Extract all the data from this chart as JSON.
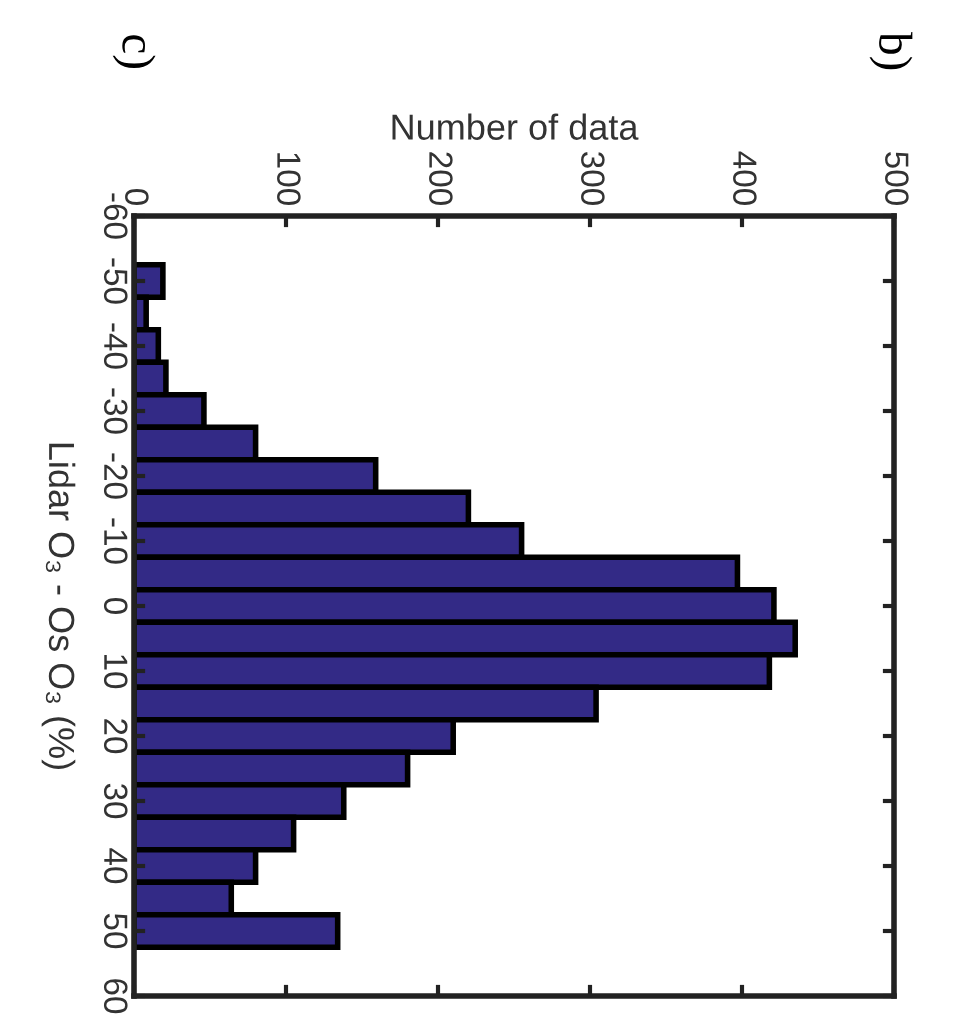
{
  "chart_data": {
    "type": "histogram",
    "orientation": "horizontal",
    "xlabel": "Number of data",
    "ylabel": "Lidar O₃ - Os O₃ (%)",
    "annotations": [
      "c)",
      "b)"
    ],
    "bins": [
      -52.5,
      -47.5,
      -42.5,
      -37.5,
      -32.5,
      -27.5,
      -22.5,
      -17.5,
      -12.5,
      -7.5,
      -2.5,
      2.5,
      7.5,
      12.5,
      17.5,
      22.5,
      27.5,
      32.5,
      37.5,
      42.5,
      47.5,
      52.5
    ],
    "values": [
      19,
      8,
      16,
      21,
      46,
      80,
      159,
      220,
      255,
      397,
      421,
      435,
      418,
      304,
      210,
      180,
      138,
      105,
      80,
      64,
      134
    ],
    "color": "#332a86",
    "xlim": [
      0,
      500
    ],
    "xticks": [
      0,
      100,
      200,
      300,
      400,
      500
    ],
    "ylim": [
      60,
      -60
    ],
    "yticks": [
      -60,
      -50,
      -40,
      -30,
      -20,
      -10,
      0,
      10,
      20,
      30,
      40,
      50,
      60
    ],
    "grid": false
  }
}
